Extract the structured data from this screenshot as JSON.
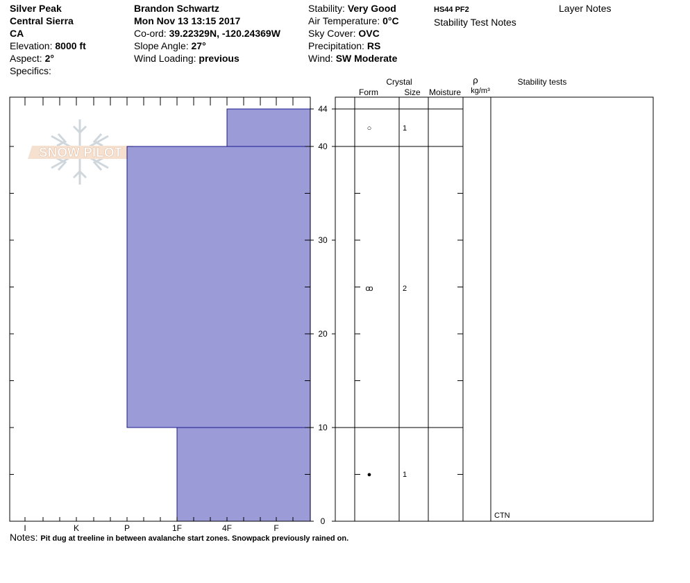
{
  "header": {
    "location": "Silver Peak",
    "region": "Central Sierra",
    "state": "CA",
    "elevation_label": "Elevation:",
    "elevation": "8000 ft",
    "aspect_label": "Aspect:",
    "aspect": "2°",
    "specifics_label": "Specifics:",
    "observer": "Brandon Schwartz",
    "datetime": "Mon Nov 13 13:15 2017",
    "coord_label": "Co-ord:",
    "coord": "39.22329N, -120.24369W",
    "slope_label": "Slope Angle:",
    "slope": "27°",
    "wind_loading_label": "Wind Loading:",
    "wind_loading": "previous",
    "stability_label": "Stability:",
    "stability": "Very Good",
    "air_temp_label": "Air Temperature:",
    "air_temp": "0°C",
    "sky_label": "Sky Cover:",
    "sky": "OVC",
    "precip_label": "Precipitation:",
    "precip": "RS",
    "wind_label": "Wind:",
    "wind": "SW Moderate",
    "hs_code": "HS44 PF2",
    "stability_notes_label": "Stability Test Notes",
    "layer_notes_label": "Layer Notes"
  },
  "columns": {
    "crystal": "Crystal",
    "form": "Form",
    "size": "Size",
    "moisture": "Moisture",
    "rho": "ρ",
    "density_unit": "kg/m³",
    "stability_tests": "Stability tests"
  },
  "watermark": "SNOW PILOT",
  "notes_label": "Notes:",
  "notes": "Pit dug at treeline in between avalanche start zones. Snowpack previously rained on.",
  "chart_data": {
    "type": "snow_profile",
    "y_axis": {
      "ylim": [
        0,
        44
      ],
      "tick_labels": [
        "0",
        "10",
        "20",
        "30",
        "40",
        "44"
      ],
      "units": "cm"
    },
    "hardness_axis": {
      "tick_labels": [
        "I",
        "K",
        "P",
        "1F",
        "4F",
        "F"
      ]
    },
    "layers": [
      {
        "top": 44,
        "bottom": 40,
        "hardness": "4F",
        "form_symbol": "○",
        "size": "1"
      },
      {
        "top": 40,
        "bottom": 10,
        "hardness": "P",
        "form_symbol": "ꝏ",
        "size": "2"
      },
      {
        "top": 10,
        "bottom": 0,
        "hardness": "1F",
        "form_symbol": "●",
        "size": "1"
      }
    ],
    "stability_tests": [
      {
        "height": 0,
        "label": "CTN"
      }
    ],
    "fill_color": "#9b9bd7",
    "edge_color": "#1a1a8c"
  }
}
